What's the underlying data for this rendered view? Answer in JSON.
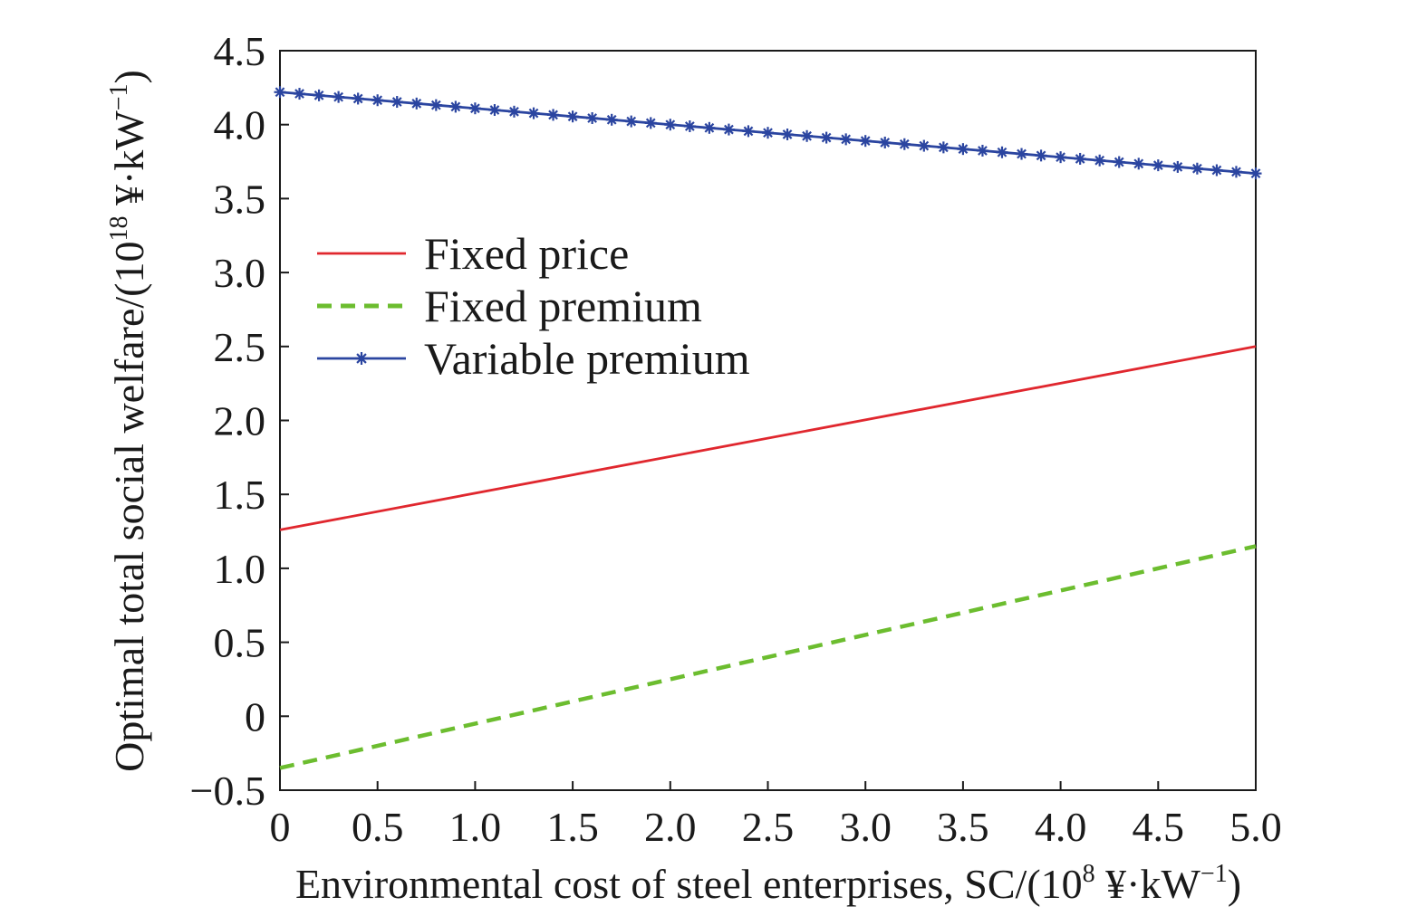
{
  "chart_data": {
    "type": "line",
    "title": "",
    "xlabel": {
      "text_before": "Environmental cost of steel enterprises, SC/(10",
      "sup1": "8",
      "text_mid": " ¥·kW",
      "sup2": "−1",
      "text_after": ")"
    },
    "ylabel": {
      "text_before": "Optimal total social welfare/(10",
      "sup1": "18",
      "text_mid": " ¥·kW",
      "sup2": "−1",
      "text_after": ")"
    },
    "xlim": [
      0,
      5
    ],
    "ylim": [
      -0.5,
      4.5
    ],
    "x_ticks": [
      0,
      0.5,
      1.0,
      1.5,
      2.0,
      2.5,
      3.0,
      3.5,
      4.0,
      4.5,
      5.0
    ],
    "x_tick_labels": [
      "0",
      "0.5",
      "1.0",
      "1.5",
      "2.0",
      "2.5",
      "3.0",
      "3.5",
      "4.0",
      "4.5",
      "5.0"
    ],
    "y_ticks": [
      -0.5,
      0,
      0.5,
      1.0,
      1.5,
      2.0,
      2.5,
      3.0,
      3.5,
      4.0,
      4.5
    ],
    "y_tick_labels": [
      "−0.5",
      "0",
      "0.5",
      "1.0",
      "1.5",
      "2.0",
      "2.5",
      "3.0",
      "3.5",
      "4.0",
      "4.5"
    ],
    "grid": false,
    "legend_position": "left",
    "series": [
      {
        "name": "Fixed price",
        "color": "#e0272e",
        "style": "solid",
        "marker": "none",
        "x": [
          0,
          5
        ],
        "y": [
          1.26,
          2.5
        ]
      },
      {
        "name": "Fixed premium",
        "color": "#6cbd2f",
        "style": "dashed",
        "marker": "none",
        "x": [
          0,
          5
        ],
        "y": [
          -0.35,
          1.15
        ]
      },
      {
        "name": "Variable premium",
        "color": "#2b45a0",
        "style": "solid",
        "marker": "asterisk",
        "x": [
          0,
          5
        ],
        "y": [
          4.22,
          3.67
        ],
        "marker_count": 51
      }
    ]
  }
}
